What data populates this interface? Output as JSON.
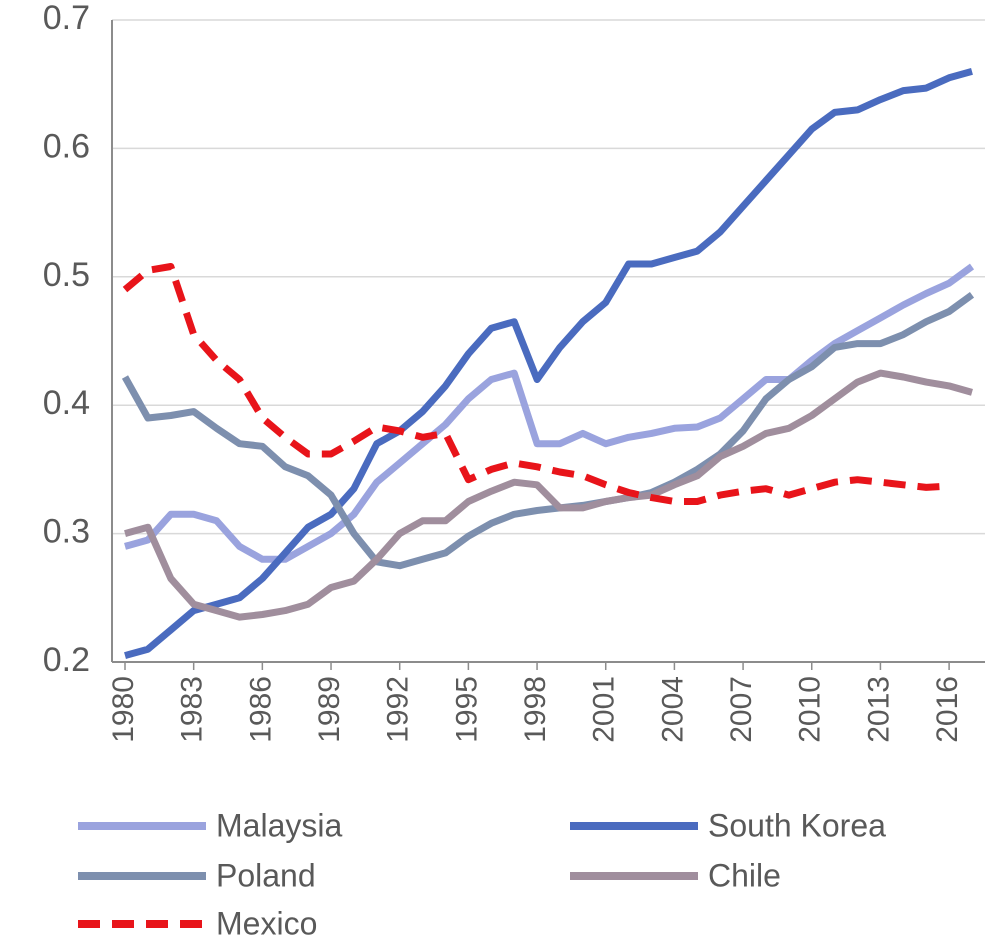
{
  "chart_data": {
    "type": "line",
    "x": [
      1980,
      1981,
      1982,
      1983,
      1984,
      1985,
      1986,
      1987,
      1988,
      1989,
      1990,
      1991,
      1992,
      1993,
      1994,
      1995,
      1996,
      1997,
      1998,
      1999,
      2000,
      2001,
      2002,
      2003,
      2004,
      2005,
      2006,
      2007,
      2008,
      2009,
      2010,
      2011,
      2012,
      2013,
      2014,
      2015,
      2016,
      2017
    ],
    "xlim": [
      1980,
      2017
    ],
    "xticks": [
      1980,
      1983,
      1986,
      1989,
      1992,
      1995,
      1998,
      2001,
      2004,
      2007,
      2010,
      2013,
      2016
    ],
    "ylim": [
      0.2,
      0.7
    ],
    "yticks": [
      0.2,
      0.3,
      0.4,
      0.5,
      0.6,
      0.7
    ],
    "grid": true,
    "series": [
      {
        "name": "Malaysia",
        "color": "#9aa3de",
        "values": [
          0.29,
          0.295,
          0.315,
          0.315,
          0.31,
          0.29,
          0.28,
          0.28,
          0.29,
          0.3,
          0.315,
          0.34,
          0.355,
          0.37,
          0.385,
          0.405,
          0.42,
          0.425,
          0.37,
          0.37,
          0.378,
          0.37,
          0.375,
          0.378,
          0.382,
          0.383,
          0.39,
          0.405,
          0.42,
          0.42,
          0.435,
          0.448,
          0.458,
          0.468,
          0.478,
          0.487,
          0.495,
          0.508
        ]
      },
      {
        "name": "South Korea",
        "color": "#4a6bbf",
        "values": [
          0.205,
          0.21,
          0.225,
          0.24,
          0.245,
          0.25,
          0.265,
          0.285,
          0.305,
          0.315,
          0.335,
          0.37,
          0.38,
          0.395,
          0.415,
          0.44,
          0.46,
          0.465,
          0.42,
          0.445,
          0.465,
          0.48,
          0.51,
          0.51,
          0.515,
          0.52,
          0.535,
          0.555,
          0.575,
          0.595,
          0.615,
          0.628,
          0.63,
          0.638,
          0.645,
          0.647,
          0.655,
          0.66
        ]
      },
      {
        "name": "Poland",
        "color": "#7d8fae",
        "values": [
          0.422,
          0.39,
          0.392,
          0.395,
          0.382,
          0.37,
          0.368,
          0.352,
          0.345,
          0.33,
          0.3,
          0.278,
          0.275,
          0.28,
          0.285,
          0.298,
          0.308,
          0.315,
          0.318,
          0.32,
          0.322,
          0.325,
          0.328,
          0.332,
          0.34,
          0.35,
          0.362,
          0.38,
          0.405,
          0.42,
          0.43,
          0.445,
          0.448,
          0.448,
          0.455,
          0.465,
          0.473,
          0.486
        ]
      },
      {
        "name": "Chile",
        "color": "#a08e9d",
        "values": [
          0.3,
          0.305,
          0.265,
          0.245,
          0.24,
          0.235,
          0.237,
          0.24,
          0.245,
          0.258,
          0.263,
          0.28,
          0.3,
          0.31,
          0.31,
          0.325,
          0.333,
          0.34,
          0.338,
          0.32,
          0.32,
          0.325,
          0.328,
          0.33,
          0.338,
          0.345,
          0.36,
          0.368,
          0.378,
          0.382,
          0.392,
          0.405,
          0.418,
          0.425,
          0.422,
          0.418,
          0.415,
          0.41
        ]
      },
      {
        "name": "Mexico",
        "color": "#e8141a",
        "dash": "dashed",
        "values": [
          0.49,
          0.505,
          0.508,
          0.455,
          0.435,
          0.42,
          0.39,
          0.375,
          0.362,
          0.362,
          0.372,
          0.383,
          0.38,
          0.375,
          0.378,
          0.342,
          0.35,
          0.355,
          0.352,
          0.348,
          0.345,
          0.338,
          0.332,
          0.328,
          0.325,
          0.325,
          0.33,
          0.333,
          0.335,
          0.33,
          0.335,
          0.34,
          0.342,
          0.34,
          0.338,
          0.336,
          0.337,
          null
        ]
      }
    ]
  }
}
